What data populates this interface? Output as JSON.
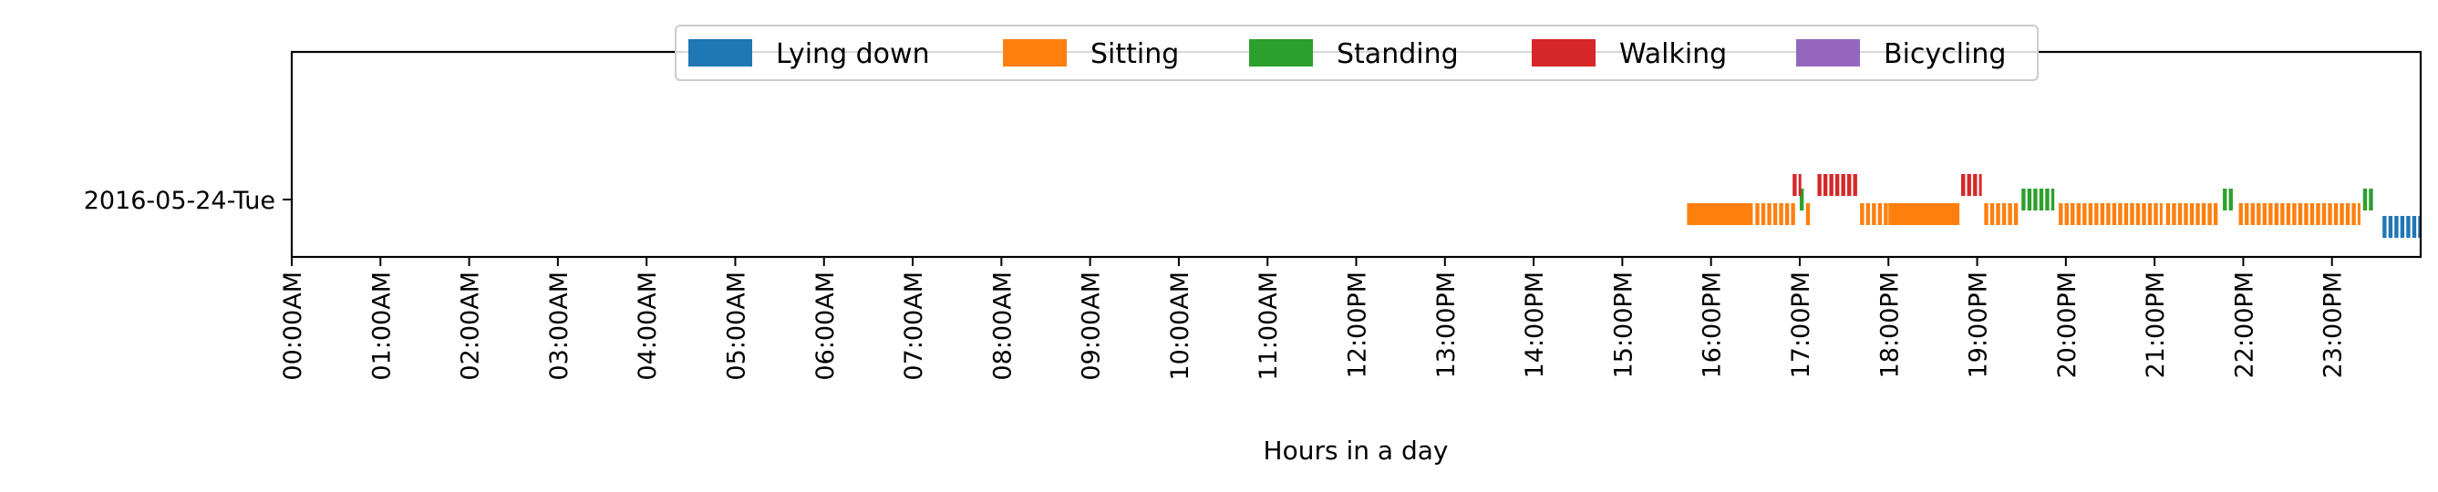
{
  "chart_data": {
    "type": "timeline",
    "xlabel": "Hours in a day",
    "ylabel": "",
    "xlim": [
      0,
      24
    ],
    "y_categories": [
      "2016-05-24-Tue"
    ],
    "x_tick_labels": [
      "00:00AM",
      "01:00AM",
      "02:00AM",
      "03:00AM",
      "04:00AM",
      "05:00AM",
      "06:00AM",
      "07:00AM",
      "08:00AM",
      "09:00AM",
      "10:00AM",
      "11:00AM",
      "12:00PM",
      "13:00PM",
      "14:00PM",
      "15:00PM",
      "16:00PM",
      "17:00PM",
      "18:00PM",
      "19:00PM",
      "20:00PM",
      "21:00PM",
      "22:00PM",
      "23:00PM"
    ],
    "legend_position": "top-center",
    "series": [
      {
        "name": "Lying down",
        "color": "#1f77b4",
        "intervals": [
          [
            23.57,
            24.0
          ]
        ]
      },
      {
        "name": "Sitting",
        "color": "#ff7f0e",
        "intervals": [
          [
            15.73,
            16.47
          ],
          [
            16.5,
            16.95
          ],
          [
            17.07,
            17.13
          ],
          [
            17.68,
            18.0
          ],
          [
            18.0,
            18.8
          ],
          [
            19.08,
            19.47
          ],
          [
            19.92,
            21.07
          ],
          [
            21.13,
            21.72
          ],
          [
            21.95,
            23.32
          ]
        ]
      },
      {
        "name": "Standing",
        "color": "#2ca02c",
        "intervals": [
          [
            17.0,
            17.05
          ],
          [
            19.5,
            19.87
          ],
          [
            21.77,
            21.9
          ],
          [
            23.35,
            23.47
          ]
        ]
      },
      {
        "name": "Walking",
        "color": "#d62728",
        "intervals": [
          [
            16.92,
            17.0
          ],
          [
            17.2,
            17.65
          ],
          [
            18.82,
            19.03
          ]
        ]
      },
      {
        "name": "Bicycling",
        "color": "#9467bd",
        "intervals": []
      }
    ]
  }
}
